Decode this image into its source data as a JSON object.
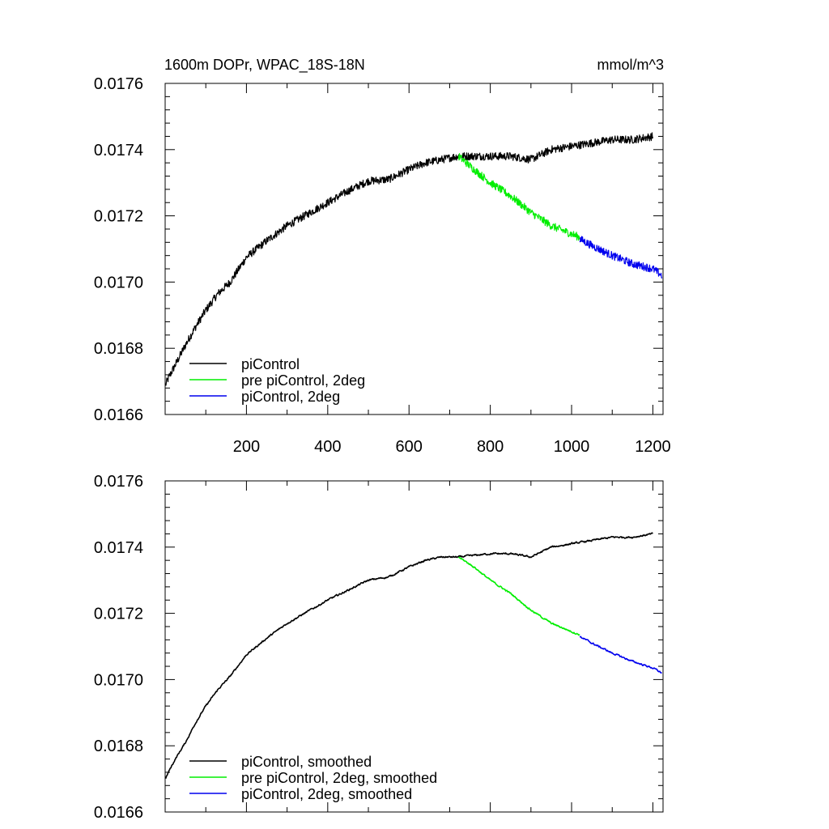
{
  "chart_data": [
    {
      "type": "line",
      "title": "1600m DOPr, WPAC_18S-18N",
      "units": "mmol/m^3",
      "xlabel": "",
      "ylabel": "",
      "xlim": [
        0,
        1225
      ],
      "ylim": [
        0.0166,
        0.0176
      ],
      "x_ticks": [
        200,
        400,
        600,
        800,
        1000,
        1200
      ],
      "x_tick_labels": [
        "200",
        "400",
        "600",
        "800",
        "1000",
        "1200"
      ],
      "y_ticks": [
        0.0166,
        0.0168,
        0.017,
        0.0172,
        0.0174,
        0.0176
      ],
      "y_tick_labels": [
        "0.0166",
        "0.0168",
        "0.0170",
        "0.0172",
        "0.0174",
        "0.0176"
      ],
      "legend_position": "bottom-left",
      "noise": 1.2e-05,
      "series": [
        {
          "name": "piControl",
          "color": "#000000",
          "x": [
            1,
            10,
            25,
            50,
            75,
            100,
            130,
            160,
            200,
            250,
            300,
            350,
            400,
            450,
            500,
            550,
            600,
            640,
            680,
            720,
            760,
            800,
            850,
            900,
            950,
            1000,
            1050,
            1100,
            1150,
            1200
          ],
          "y": [
            0.01669,
            0.016715,
            0.01675,
            0.01681,
            0.016865,
            0.016915,
            0.016965,
            0.017,
            0.017075,
            0.017125,
            0.01717,
            0.017205,
            0.01724,
            0.017275,
            0.017305,
            0.01731,
            0.01734,
            0.01736,
            0.01737,
            0.01738,
            0.01738,
            0.01738,
            0.01738,
            0.01737,
            0.0174,
            0.01741,
            0.01742,
            0.01743,
            0.01743,
            0.01744
          ]
        },
        {
          "name": "pre piControl, 2deg",
          "color": "#00ee00",
          "x": [
            722,
            760,
            800,
            850,
            900,
            950,
            1000,
            1020
          ],
          "y": [
            0.01738,
            0.01734,
            0.0173,
            0.01726,
            0.01721,
            0.01717,
            0.017145,
            0.017135
          ]
        },
        {
          "name": "piControl, 2deg",
          "color": "#0000ee",
          "x": [
            1020,
            1050,
            1100,
            1150,
            1200,
            1222
          ],
          "y": [
            0.01713,
            0.01711,
            0.01708,
            0.017055,
            0.01704,
            0.01702
          ]
        }
      ]
    },
    {
      "type": "line",
      "title": "",
      "xlabel": "",
      "ylabel": "",
      "xlim": [
        0,
        1225
      ],
      "ylim": [
        0.0166,
        0.0176
      ],
      "x_ticks": [
        200,
        400,
        600,
        800,
        1000,
        1200
      ],
      "x_tick_labels": [],
      "y_ticks": [
        0.0166,
        0.0168,
        0.017,
        0.0172,
        0.0174,
        0.0176
      ],
      "y_tick_labels": [
        "0.0166",
        "0.0168",
        "0.0170",
        "0.0172",
        "0.0174",
        "0.0176"
      ],
      "legend_position": "bottom-left",
      "noise": 4e-06,
      "series": [
        {
          "name": "piControl, smoothed",
          "color": "#000000",
          "x": [
            1,
            10,
            25,
            50,
            75,
            100,
            130,
            160,
            200,
            250,
            300,
            350,
            400,
            450,
            500,
            550,
            600,
            640,
            680,
            720,
            760,
            800,
            850,
            900,
            950,
            1000,
            1050,
            1100,
            1150,
            1200
          ],
          "y": [
            0.0167,
            0.016725,
            0.01676,
            0.01681,
            0.01687,
            0.01692,
            0.01697,
            0.01701,
            0.017075,
            0.017125,
            0.01717,
            0.017205,
            0.01724,
            0.01727,
            0.0173,
            0.01731,
            0.01734,
            0.01736,
            0.01737,
            0.01737,
            0.017375,
            0.01738,
            0.01738,
            0.01737,
            0.0174,
            0.01741,
            0.01742,
            0.01743,
            0.01743,
            0.01744
          ]
        },
        {
          "name": "pre piControl, 2deg, smoothed",
          "color": "#00ee00",
          "x": [
            722,
            760,
            800,
            850,
            900,
            950,
            1000,
            1020
          ],
          "y": [
            0.01737,
            0.01734,
            0.0173,
            0.01726,
            0.01721,
            0.01717,
            0.017145,
            0.017135
          ]
        },
        {
          "name": "piControl, 2deg, smoothed",
          "color": "#0000ee",
          "x": [
            1020,
            1050,
            1100,
            1150,
            1200,
            1222
          ],
          "y": [
            0.01713,
            0.01711,
            0.01708,
            0.017055,
            0.017035,
            0.01702
          ]
        }
      ]
    }
  ]
}
